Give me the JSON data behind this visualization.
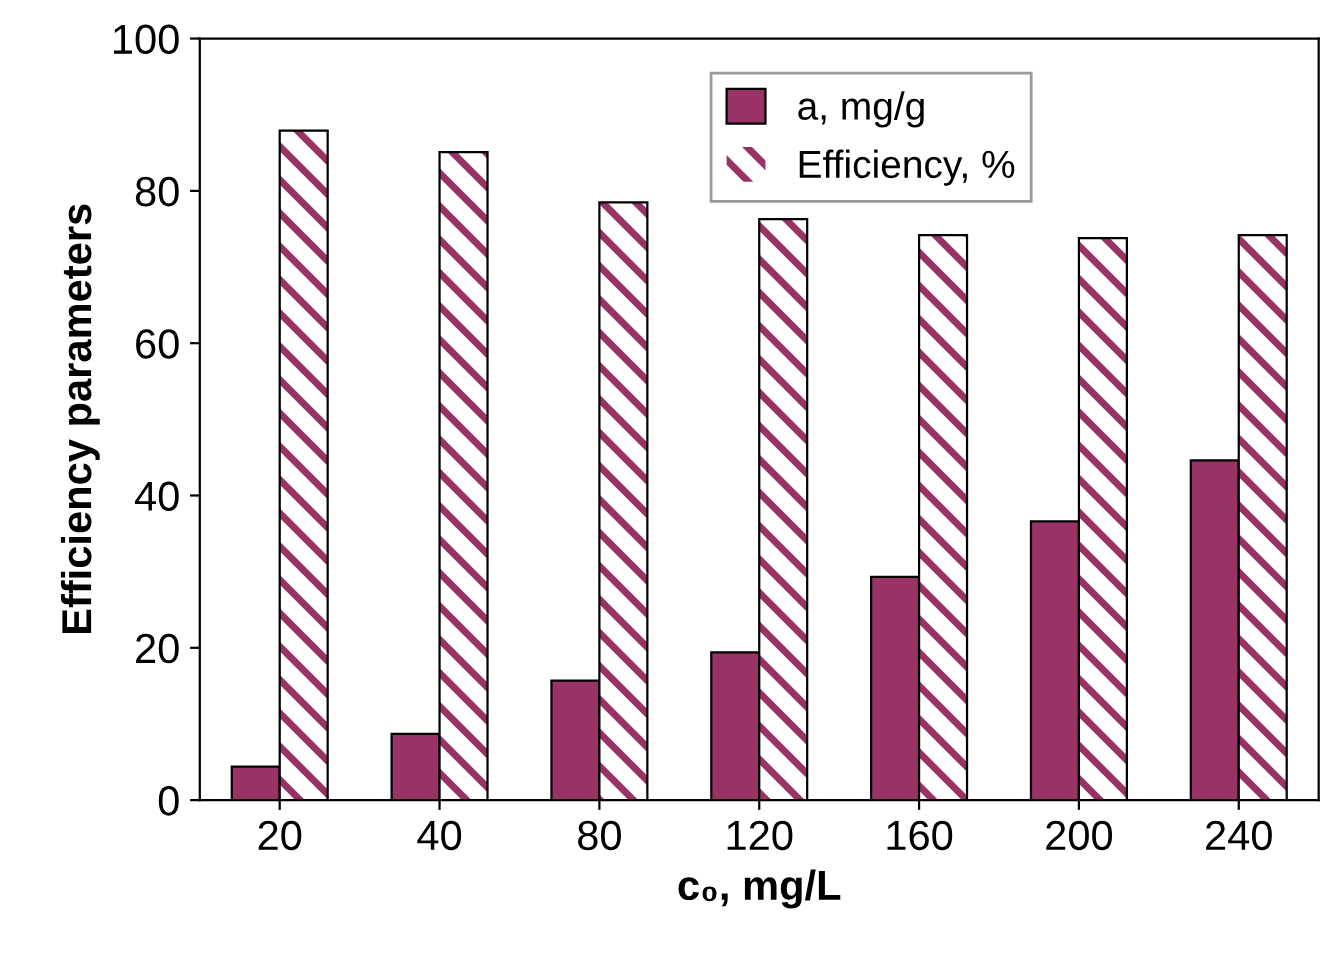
{
  "chart_data": {
    "type": "bar",
    "xlabel": "c₀, mg/L",
    "ylabel": "Efficiency parameters",
    "categories": [
      "20",
      "40",
      "80",
      "120",
      "160",
      "200",
      "240"
    ],
    "series": [
      {
        "name": "a, mg/g",
        "color": "#993366",
        "values": [
          4.4,
          8.7,
          15.7,
          19.4,
          29.3,
          36.6,
          44.6
        ]
      },
      {
        "name": "Efficiency, %",
        "color": "#993366",
        "values": [
          87.9,
          85.1,
          78.5,
          76.3,
          74.2,
          73.8,
          74.2
        ]
      }
    ],
    "ylim": [
      0,
      100
    ],
    "yticks": [
      0,
      20,
      40,
      60,
      80,
      100
    ],
    "grid": false,
    "legend": "top"
  }
}
